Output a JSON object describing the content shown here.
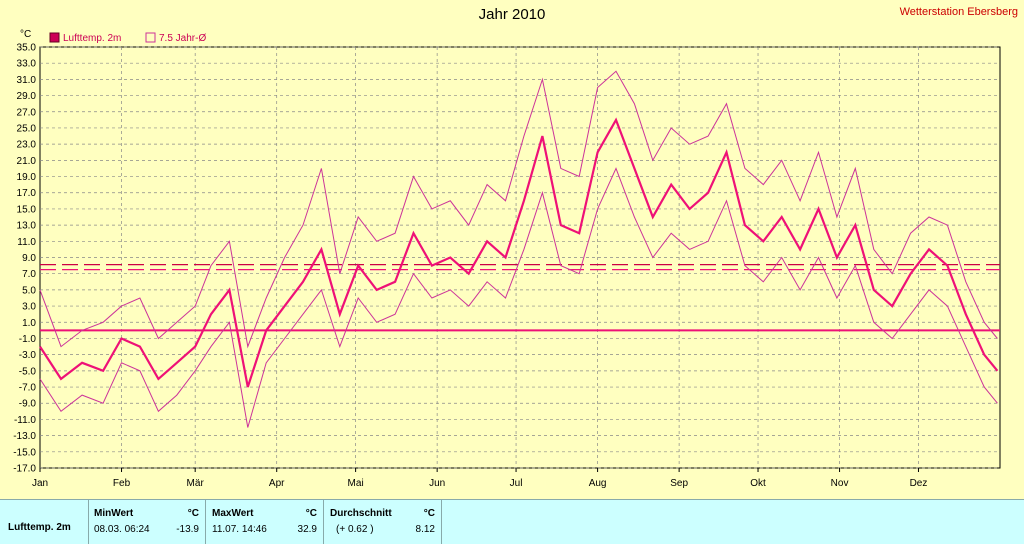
{
  "header": {
    "title": "Jahr 2010",
    "station": "Wetterstation Ebersberg"
  },
  "chart_data": {
    "type": "line",
    "title": "Jahr 2010",
    "ylabel": "°C",
    "ylim": [
      -17,
      35
    ],
    "y_ticks": [
      "35.0",
      "33.0",
      "31.0",
      "29.0",
      "27.0",
      "25.0",
      "23.0",
      "21.0",
      "19.0",
      "17.0",
      "15.0",
      "13.0",
      "11.0",
      "9.0",
      "7.0",
      "5.0",
      "3.0",
      "1.0",
      "-1.0",
      "-3.0",
      "-5.0",
      "-7.0",
      "-9.0",
      "-11.0",
      "-13.0",
      "-15.0",
      "-17.0"
    ],
    "x_ticks": [
      "Jan",
      "Feb",
      "Mär",
      "Apr",
      "Mai",
      "Jun",
      "Jul",
      "Aug",
      "Sep",
      "Okt",
      "Nov",
      "Dez"
    ],
    "legend": [
      "Lufttemp. 2m",
      "7.5 Jahr-Ø"
    ],
    "grid": true,
    "reference_lines": [
      {
        "name": "Frostgrenze",
        "value": 0
      },
      {
        "name": "Durchschnitt",
        "value": 8.12
      },
      {
        "name": "7.5 Jahr-Ø",
        "value": 7.5
      }
    ],
    "series": [
      {
        "name": "Lufttemp. 2m",
        "x": [
          0,
          8,
          16,
          24,
          31,
          38,
          45,
          52,
          59,
          65,
          72,
          79,
          86,
          93,
          100,
          107,
          114,
          121,
          128,
          135,
          142,
          149,
          156,
          163,
          170,
          177,
          184,
          191,
          198,
          205,
          212,
          219,
          226,
          233,
          240,
          247,
          254,
          261,
          268,
          275,
          282,
          289,
          296,
          303,
          310,
          317,
          324,
          331,
          338,
          345,
          352,
          359,
          364
        ],
        "mean": [
          -2,
          -6,
          -4,
          -5,
          -1,
          -2,
          -6,
          -4,
          -2,
          2,
          5,
          -7,
          0,
          3,
          6,
          10,
          2,
          8,
          5,
          6,
          12,
          8,
          9,
          7,
          11,
          9,
          16,
          24,
          13,
          12,
          22,
          26,
          20,
          14,
          18,
          15,
          17,
          22,
          13,
          11,
          14,
          10,
          15,
          9,
          13,
          5,
          3,
          7,
          10,
          8,
          2,
          -3,
          -5
        ],
        "max": [
          5,
          -2,
          0,
          1,
          3,
          4,
          -1,
          1,
          3,
          8,
          11,
          -2,
          4,
          9,
          13,
          20,
          7,
          14,
          11,
          12,
          19,
          15,
          16,
          13,
          18,
          16,
          24,
          31,
          20,
          19,
          30,
          32,
          28,
          21,
          25,
          23,
          24,
          28,
          20,
          18,
          21,
          16,
          22,
          14,
          20,
          10,
          7,
          12,
          14,
          13,
          6,
          1,
          -1
        ],
        "min": [
          -6,
          -10,
          -8,
          -9,
          -4,
          -5,
          -10,
          -8,
          -5,
          -2,
          1,
          -12,
          -4,
          -1,
          2,
          5,
          -2,
          4,
          1,
          2,
          7,
          4,
          5,
          3,
          6,
          4,
          10,
          17,
          8,
          7,
          15,
          20,
          14,
          9,
          12,
          10,
          11,
          16,
          8,
          6,
          9,
          5,
          9,
          4,
          8,
          1,
          -1,
          2,
          5,
          3,
          -2,
          -7,
          -9
        ]
      },
      {
        "name": "7.5 Jahr-Ø",
        "values": [
          7.5
        ]
      }
    ]
  },
  "stats": {
    "row_label": "Lufttemp. 2m",
    "min": {
      "label": "MinWert",
      "unit": "°C",
      "date": "08.03.  06:24",
      "value": "-13.9"
    },
    "max": {
      "label": "MaxWert",
      "unit": "°C",
      "date": "11.07.  14:46",
      "value": "32.9"
    },
    "avg": {
      "label": "Durchschnitt",
      "unit": "°C",
      "diff": "(+ 0.62 )",
      "value": "8.12"
    }
  },
  "colors": {
    "mean": "#ee1177",
    "range": "#cc3399",
    "grid": "#888888",
    "ref": "#ee1177",
    "avg": "#cc0044"
  }
}
